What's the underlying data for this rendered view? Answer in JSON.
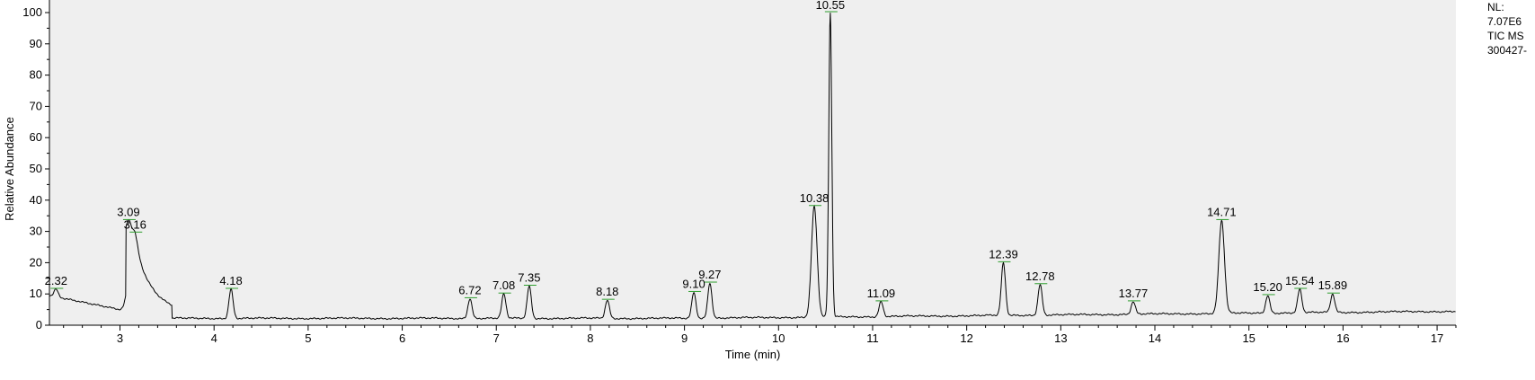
{
  "chart_data": {
    "type": "line",
    "xlabel": "Time (min)",
    "ylabel": "Relative Abundance",
    "xlim": [
      2.25,
      17.2
    ],
    "ylim": [
      0,
      100
    ],
    "x_ticks": [
      "3",
      "4",
      "5",
      "6",
      "7",
      "8",
      "9",
      "10",
      "11",
      "12",
      "13",
      "14",
      "15",
      "16",
      "17"
    ],
    "y_ticks": [
      "0",
      "10",
      "20",
      "30",
      "40",
      "50",
      "60",
      "70",
      "80",
      "90",
      "100"
    ],
    "plot_background": "#efefef",
    "trace_color": "#000000",
    "marker_color": "#2e9e2e",
    "peaks": [
      {
        "label": "2.32",
        "x": 2.32,
        "y": 11.5
      },
      {
        "label": "3.09",
        "x": 3.09,
        "y": 33.5
      },
      {
        "label": "3.16",
        "x": 3.16,
        "y": 29.5
      },
      {
        "label": "4.18",
        "x": 4.18,
        "y": 11.5
      },
      {
        "label": "6.72",
        "x": 6.72,
        "y": 8.5
      },
      {
        "label": "7.08",
        "x": 7.08,
        "y": 10.0
      },
      {
        "label": "7.35",
        "x": 7.35,
        "y": 12.5
      },
      {
        "label": "8.18",
        "x": 8.18,
        "y": 8.0
      },
      {
        "label": "9.10",
        "x": 9.1,
        "y": 10.5
      },
      {
        "label": "9.27",
        "x": 9.27,
        "y": 13.5
      },
      {
        "label": "10.38",
        "x": 10.38,
        "y": 38.0
      },
      {
        "label": "10.55",
        "x": 10.55,
        "y": 100.0
      },
      {
        "label": "11.09",
        "x": 11.09,
        "y": 7.5
      },
      {
        "label": "12.39",
        "x": 12.39,
        "y": 20.0
      },
      {
        "label": "12.78",
        "x": 12.78,
        "y": 13.0
      },
      {
        "label": "13.77",
        "x": 13.77,
        "y": 7.5
      },
      {
        "label": "14.71",
        "x": 14.71,
        "y": 33.5
      },
      {
        "label": "15.20",
        "x": 15.2,
        "y": 9.5
      },
      {
        "label": "15.54",
        "x": 15.54,
        "y": 11.5
      },
      {
        "label": "15.89",
        "x": 15.89,
        "y": 10.0
      }
    ]
  },
  "side_info": {
    "line1": "NL:",
    "line2": "7.07E6",
    "line3": "TIC  MS",
    "line4": "300427-"
  }
}
